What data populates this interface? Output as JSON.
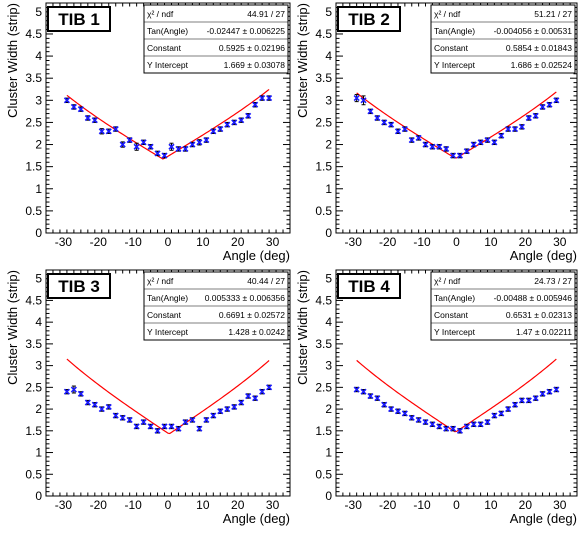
{
  "chart_data": [
    {
      "type": "scatter",
      "title": "TIB 1",
      "xlabel": "Angle (deg)",
      "ylabel": "Cluster Width (strip)",
      "xlim": [
        -35,
        35
      ],
      "ylim": [
        0,
        5.2
      ],
      "x_ticks": [
        -30,
        -20,
        -10,
        0,
        10,
        20,
        30
      ],
      "y_ticks": [
        0,
        0.5,
        1,
        1.5,
        2,
        2.5,
        3,
        3.5,
        4,
        4.5,
        5
      ],
      "grid": false,
      "stats_box": [
        {
          "label": "χ² / ndf",
          "value": "44.91 / 27"
        },
        {
          "label": "Tan(Angle)",
          "value": "-0.02447 ± 0.006225"
        },
        {
          "label": "Constant",
          "value": "0.5925 ± 0.02196"
        },
        {
          "label": "Y Intercept",
          "value": "1.669 ± 0.03078"
        }
      ],
      "fit": {
        "tan_angle": -0.02447,
        "constant": 0.5925,
        "y_intercept": 1.669,
        "color": "#ff0000"
      },
      "marker_color": "#1a1aff",
      "series": [
        {
          "x": [
            -29,
            -27,
            -25,
            -23,
            -21,
            -19,
            -17,
            -15,
            -13,
            -11,
            -9,
            -7,
            -5,
            -3,
            -1,
            1,
            3,
            5,
            7,
            9,
            11,
            13,
            15,
            17,
            19,
            21,
            23,
            25,
            27,
            29
          ],
          "y": [
            3.0,
            2.85,
            2.8,
            2.6,
            2.55,
            2.3,
            2.3,
            2.35,
            2.0,
            2.1,
            1.95,
            2.05,
            1.95,
            1.8,
            1.75,
            1.95,
            1.9,
            1.9,
            2.0,
            2.05,
            2.1,
            2.3,
            2.35,
            2.45,
            2.5,
            2.55,
            2.65,
            2.9,
            3.05,
            3.05
          ],
          "err": [
            0.05,
            0.05,
            0.05,
            0.05,
            0.05,
            0.06,
            0.05,
            0.05,
            0.06,
            0.05,
            0.08,
            0.05,
            0.05,
            0.05,
            0.05,
            0.08,
            0.05,
            0.05,
            0.05,
            0.06,
            0.05,
            0.05,
            0.05,
            0.05,
            0.05,
            0.05,
            0.05,
            0.05,
            0.05,
            0.05
          ]
        }
      ]
    },
    {
      "type": "scatter",
      "title": "TIB 2",
      "xlabel": "Angle (deg)",
      "ylabel": "Cluster Width (strip)",
      "xlim": [
        -35,
        35
      ],
      "ylim": [
        0,
        5.2
      ],
      "x_ticks": [
        -30,
        -20,
        -10,
        0,
        10,
        20,
        30
      ],
      "y_ticks": [
        0,
        0.5,
        1,
        1.5,
        2,
        2.5,
        3,
        3.5,
        4,
        4.5,
        5
      ],
      "grid": false,
      "stats_box": [
        {
          "label": "χ² / ndf",
          "value": "51.21 / 27"
        },
        {
          "label": "Tan(Angle)",
          "value": "-0.004056 ± 0.00531"
        },
        {
          "label": "Constant",
          "value": "0.5854 ± 0.01843"
        },
        {
          "label": "Y Intercept",
          "value": "1.686 ± 0.02524"
        }
      ],
      "fit": {
        "tan_angle": -0.004056,
        "constant": 0.5854,
        "y_intercept": 1.686,
        "color": "#ff0000"
      },
      "marker_color": "#1a1aff",
      "series": [
        {
          "x": [
            -29,
            -27,
            -25,
            -23,
            -21,
            -19,
            -17,
            -15,
            -13,
            -11,
            -9,
            -7,
            -5,
            -3,
            -1,
            1,
            3,
            5,
            7,
            9,
            11,
            13,
            15,
            17,
            19,
            21,
            23,
            25,
            27,
            29
          ],
          "y": [
            3.05,
            3.0,
            2.75,
            2.6,
            2.5,
            2.45,
            2.3,
            2.35,
            2.1,
            2.15,
            2.0,
            1.95,
            1.95,
            1.9,
            1.75,
            1.75,
            1.85,
            2.0,
            2.05,
            2.1,
            2.05,
            2.2,
            2.35,
            2.35,
            2.4,
            2.6,
            2.65,
            2.85,
            2.9,
            3.0
          ],
          "err": [
            0.08,
            0.1,
            0.05,
            0.05,
            0.05,
            0.05,
            0.05,
            0.05,
            0.05,
            0.05,
            0.05,
            0.05,
            0.05,
            0.05,
            0.05,
            0.05,
            0.05,
            0.05,
            0.05,
            0.05,
            0.05,
            0.05,
            0.05,
            0.05,
            0.05,
            0.05,
            0.05,
            0.05,
            0.05,
            0.05
          ]
        }
      ]
    },
    {
      "type": "scatter",
      "title": "TIB 3",
      "xlabel": "Angle (deg)",
      "ylabel": "Cluster Width (strip)",
      "xlim": [
        -35,
        35
      ],
      "ylim": [
        0,
        5.2
      ],
      "x_ticks": [
        -30,
        -20,
        -10,
        0,
        10,
        20,
        30
      ],
      "y_ticks": [
        0,
        0.5,
        1,
        1.5,
        2,
        2.5,
        3,
        3.5,
        4,
        4.5,
        5
      ],
      "grid": false,
      "stats_box": [
        {
          "label": "χ² / ndf",
          "value": "40.44 / 27"
        },
        {
          "label": "Tan(Angle)",
          "value": "0.005333 ± 0.006356"
        },
        {
          "label": "Constant",
          "value": "0.6691 ± 0.02572"
        },
        {
          "label": "Y Intercept",
          "value": "1.428 ± 0.0242"
        }
      ],
      "fit": {
        "tan_angle": 0.005333,
        "constant": 0.6691,
        "y_intercept": 1.428,
        "color": "#ff0000"
      },
      "marker_color": "#1a1aff",
      "series": [
        {
          "x": [
            -29,
            -27,
            -25,
            -23,
            -21,
            -19,
            -17,
            -15,
            -13,
            -11,
            -9,
            -7,
            -5,
            -3,
            -1,
            1,
            3,
            5,
            7,
            9,
            11,
            13,
            15,
            17,
            19,
            21,
            23,
            25,
            27,
            29
          ],
          "y": [
            2.4,
            2.45,
            2.35,
            2.15,
            2.1,
            2.0,
            2.05,
            1.85,
            1.8,
            1.75,
            1.6,
            1.7,
            1.6,
            1.5,
            1.6,
            1.6,
            1.55,
            1.7,
            1.75,
            1.55,
            1.75,
            1.85,
            1.95,
            2.0,
            2.05,
            2.15,
            2.3,
            2.25,
            2.4,
            2.5
          ],
          "err": [
            0.05,
            0.08,
            0.05,
            0.05,
            0.05,
            0.05,
            0.05,
            0.05,
            0.05,
            0.05,
            0.05,
            0.05,
            0.05,
            0.05,
            0.05,
            0.05,
            0.05,
            0.05,
            0.05,
            0.05,
            0.05,
            0.05,
            0.05,
            0.05,
            0.05,
            0.05,
            0.05,
            0.05,
            0.05,
            0.05
          ]
        }
      ]
    },
    {
      "type": "scatter",
      "title": "TIB 4",
      "xlabel": "Angle (deg)",
      "ylabel": "Cluster Width (strip)",
      "xlim": [
        -35,
        35
      ],
      "ylim": [
        0,
        5.2
      ],
      "x_ticks": [
        -30,
        -20,
        -10,
        0,
        10,
        20,
        30
      ],
      "y_ticks": [
        0,
        0.5,
        1,
        1.5,
        2,
        2.5,
        3,
        3.5,
        4,
        4.5,
        5
      ],
      "grid": false,
      "stats_box": [
        {
          "label": "χ² / ndf",
          "value": "24.73 / 27"
        },
        {
          "label": "Tan(Angle)",
          "value": "-0.00488 ± 0.005946"
        },
        {
          "label": "Constant",
          "value": "0.6531 ± 0.02313"
        },
        {
          "label": "Y Intercept",
          "value": "1.47 ± 0.02211"
        }
      ],
      "fit": {
        "tan_angle": -0.00488,
        "constant": 0.6531,
        "y_intercept": 1.47,
        "color": "#ff0000"
      },
      "marker_color": "#1a1aff",
      "series": [
        {
          "x": [
            -29,
            -27,
            -25,
            -23,
            -21,
            -19,
            -17,
            -15,
            -13,
            -11,
            -9,
            -7,
            -5,
            -3,
            -1,
            1,
            3,
            5,
            7,
            9,
            11,
            13,
            15,
            17,
            19,
            21,
            23,
            25,
            27,
            29
          ],
          "y": [
            2.45,
            2.4,
            2.3,
            2.25,
            2.1,
            2.0,
            1.95,
            1.9,
            1.8,
            1.75,
            1.7,
            1.65,
            1.6,
            1.55,
            1.55,
            1.5,
            1.6,
            1.65,
            1.65,
            1.7,
            1.85,
            1.9,
            2.0,
            2.1,
            2.2,
            2.2,
            2.25,
            2.35,
            2.4,
            2.45
          ],
          "err": [
            0.05,
            0.05,
            0.05,
            0.05,
            0.05,
            0.05,
            0.05,
            0.05,
            0.05,
            0.05,
            0.05,
            0.05,
            0.05,
            0.05,
            0.05,
            0.05,
            0.05,
            0.05,
            0.05,
            0.05,
            0.05,
            0.05,
            0.05,
            0.05,
            0.05,
            0.05,
            0.05,
            0.05,
            0.05,
            0.05
          ]
        }
      ]
    }
  ]
}
